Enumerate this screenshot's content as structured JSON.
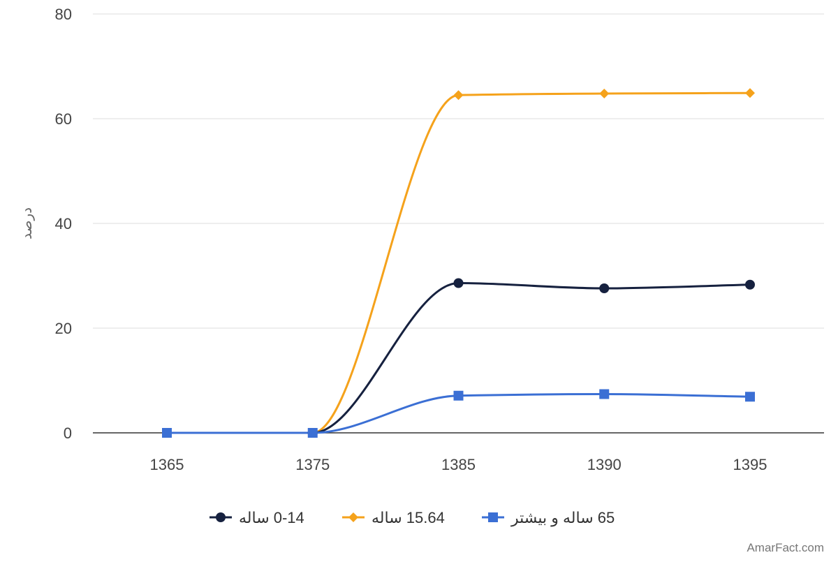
{
  "chart_data": {
    "type": "line",
    "title": "",
    "xlabel": "",
    "ylabel": "درصد",
    "categories": [
      "1365",
      "1375",
      "1385",
      "1390",
      "1395"
    ],
    "ylim": [
      0,
      80
    ],
    "yticks": [
      0,
      20,
      40,
      60,
      80
    ],
    "grid": true,
    "legend_position": "bottom",
    "curve": "smooth",
    "series": [
      {
        "name": "0-14 ساله",
        "color": "#16213f",
        "marker": "circle",
        "values": [
          0,
          0,
          28.6,
          27.6,
          28.3
        ]
      },
      {
        "name": "15.64 ساله",
        "color": "#f5a21b",
        "marker": "diamond",
        "values": [
          0,
          0,
          64.5,
          64.8,
          64.9
        ]
      },
      {
        "name": "65 ساله و بیشتر",
        "color": "#3b6fd4",
        "marker": "square",
        "values": [
          0,
          0,
          7.1,
          7.4,
          6.9
        ]
      }
    ]
  },
  "footer": {
    "credit": "AmarFact.com"
  }
}
